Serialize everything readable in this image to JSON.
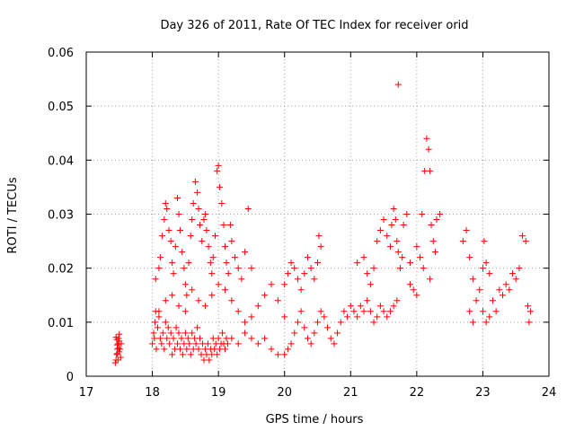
{
  "chart_data": {
    "type": "scatter",
    "title": "Day 326 of 2011, Rate Of TEC Index for receiver orid",
    "xlabel": "GPS time / hours",
    "ylabel": "ROTI / TECUs",
    "xlim": [
      17,
      24
    ],
    "ylim": [
      0,
      0.06
    ],
    "xticks": [
      "17",
      "18",
      "19",
      "20",
      "21",
      "22",
      "23",
      "24"
    ],
    "yticks": [
      "0",
      "0.01",
      "0.02",
      "0.03",
      "0.04",
      "0.05",
      "0.06"
    ],
    "grid": true,
    "marker": "plus",
    "color": "#ff0000",
    "points": [
      [
        17.45,
        0.003
      ],
      [
        17.46,
        0.004
      ],
      [
        17.47,
        0.005
      ],
      [
        17.48,
        0.006
      ],
      [
        17.49,
        0.007
      ],
      [
        17.5,
        0.0065
      ],
      [
        17.45,
        0.0072
      ],
      [
        17.47,
        0.0058
      ],
      [
        17.5,
        0.0045
      ],
      [
        17.52,
        0.0035
      ],
      [
        17.44,
        0.0025
      ],
      [
        17.48,
        0.003
      ],
      [
        17.51,
        0.005
      ],
      [
        17.46,
        0.0068
      ],
      [
        17.5,
        0.0078
      ],
      [
        17.53,
        0.006
      ],
      [
        17.49,
        0.0052
      ],
      [
        17.47,
        0.0042
      ],
      [
        18.0,
        0.006
      ],
      [
        18.02,
        0.008
      ],
      [
        18.04,
        0.01
      ],
      [
        18.05,
        0.012
      ],
      [
        18.03,
        0.007
      ],
      [
        18.06,
        0.005
      ],
      [
        18.08,
        0.009
      ],
      [
        18.1,
        0.011
      ],
      [
        18.12,
        0.007
      ],
      [
        18.14,
        0.006
      ],
      [
        18.16,
        0.008
      ],
      [
        18.18,
        0.005
      ],
      [
        18.2,
        0.01
      ],
      [
        18.22,
        0.007
      ],
      [
        18.24,
        0.009
      ],
      [
        18.26,
        0.006
      ],
      [
        18.28,
        0.008
      ],
      [
        18.3,
        0.004
      ],
      [
        18.32,
        0.007
      ],
      [
        18.34,
        0.005
      ],
      [
        18.36,
        0.009
      ],
      [
        18.38,
        0.006
      ],
      [
        18.4,
        0.008
      ],
      [
        18.42,
        0.005
      ],
      [
        18.44,
        0.007
      ],
      [
        18.46,
        0.004
      ],
      [
        18.48,
        0.006
      ],
      [
        18.5,
        0.008
      ],
      [
        18.52,
        0.005
      ],
      [
        18.54,
        0.007
      ],
      [
        18.56,
        0.006
      ],
      [
        18.58,
        0.004
      ],
      [
        18.6,
        0.008
      ],
      [
        18.62,
        0.005
      ],
      [
        18.64,
        0.007
      ],
      [
        18.66,
        0.006
      ],
      [
        18.68,
        0.009
      ],
      [
        18.7,
        0.005
      ],
      [
        18.72,
        0.007
      ],
      [
        18.74,
        0.004
      ],
      [
        18.76,
        0.006
      ],
      [
        18.78,
        0.003
      ],
      [
        18.8,
        0.005
      ],
      [
        18.82,
        0.004
      ],
      [
        18.84,
        0.006
      ],
      [
        18.86,
        0.003
      ],
      [
        18.88,
        0.005
      ],
      [
        18.9,
        0.004
      ],
      [
        18.92,
        0.007
      ],
      [
        18.94,
        0.005
      ],
      [
        18.96,
        0.006
      ],
      [
        18.98,
        0.004
      ],
      [
        19.0,
        0.007
      ],
      [
        19.02,
        0.005
      ],
      [
        19.04,
        0.006
      ],
      [
        19.06,
        0.008
      ],
      [
        19.08,
        0.006
      ],
      [
        19.1,
        0.005
      ],
      [
        19.12,
        0.007
      ],
      [
        19.14,
        0.006
      ],
      [
        18.05,
        0.018
      ],
      [
        18.1,
        0.02
      ],
      [
        18.12,
        0.022
      ],
      [
        18.15,
        0.026
      ],
      [
        18.18,
        0.029
      ],
      [
        18.2,
        0.032
      ],
      [
        18.22,
        0.031
      ],
      [
        18.25,
        0.027
      ],
      [
        18.28,
        0.025
      ],
      [
        18.3,
        0.021
      ],
      [
        18.32,
        0.019
      ],
      [
        18.35,
        0.024
      ],
      [
        18.38,
        0.033
      ],
      [
        18.4,
        0.03
      ],
      [
        18.42,
        0.027
      ],
      [
        18.45,
        0.023
      ],
      [
        18.48,
        0.02
      ],
      [
        18.5,
        0.017
      ],
      [
        18.52,
        0.015
      ],
      [
        18.55,
        0.021
      ],
      [
        18.58,
        0.026
      ],
      [
        18.6,
        0.029
      ],
      [
        18.62,
        0.032
      ],
      [
        18.65,
        0.036
      ],
      [
        18.68,
        0.034
      ],
      [
        18.7,
        0.031
      ],
      [
        18.72,
        0.028
      ],
      [
        18.75,
        0.025
      ],
      [
        18.78,
        0.029
      ],
      [
        18.8,
        0.03
      ],
      [
        18.82,
        0.027
      ],
      [
        18.85,
        0.024
      ],
      [
        18.88,
        0.021
      ],
      [
        18.9,
        0.019
      ],
      [
        18.92,
        0.022
      ],
      [
        18.95,
        0.026
      ],
      [
        18.98,
        0.038
      ],
      [
        19.0,
        0.039
      ],
      [
        19.02,
        0.035
      ],
      [
        19.05,
        0.032
      ],
      [
        19.08,
        0.028
      ],
      [
        19.1,
        0.024
      ],
      [
        19.12,
        0.021
      ],
      [
        19.15,
        0.019
      ],
      [
        19.18,
        0.028
      ],
      [
        19.2,
        0.025
      ],
      [
        19.25,
        0.022
      ],
      [
        19.3,
        0.02
      ],
      [
        19.35,
        0.018
      ],
      [
        19.4,
        0.023
      ],
      [
        19.45,
        0.031
      ],
      [
        19.5,
        0.02
      ],
      [
        18.1,
        0.012
      ],
      [
        18.2,
        0.014
      ],
      [
        18.3,
        0.015
      ],
      [
        18.4,
        0.013
      ],
      [
        18.5,
        0.012
      ],
      [
        18.6,
        0.016
      ],
      [
        18.7,
        0.014
      ],
      [
        18.8,
        0.013
      ],
      [
        18.9,
        0.015
      ],
      [
        19.0,
        0.017
      ],
      [
        19.1,
        0.016
      ],
      [
        19.2,
        0.014
      ],
      [
        19.3,
        0.012
      ],
      [
        19.4,
        0.01
      ],
      [
        19.5,
        0.011
      ],
      [
        19.6,
        0.013
      ],
      [
        19.7,
        0.015
      ],
      [
        19.8,
        0.017
      ],
      [
        19.9,
        0.014
      ],
      [
        20.0,
        0.011
      ],
      [
        19.2,
        0.007
      ],
      [
        19.3,
        0.006
      ],
      [
        19.4,
        0.008
      ],
      [
        19.5,
        0.007
      ],
      [
        19.6,
        0.006
      ],
      [
        19.7,
        0.007
      ],
      [
        19.8,
        0.005
      ],
      [
        19.9,
        0.004
      ],
      [
        20.0,
        0.004
      ],
      [
        20.05,
        0.005
      ],
      [
        20.1,
        0.006
      ],
      [
        20.15,
        0.008
      ],
      [
        20.2,
        0.01
      ],
      [
        20.25,
        0.012
      ],
      [
        20.3,
        0.009
      ],
      [
        20.35,
        0.007
      ],
      [
        20.4,
        0.006
      ],
      [
        20.45,
        0.008
      ],
      [
        20.5,
        0.01
      ],
      [
        20.55,
        0.012
      ],
      [
        20.6,
        0.011
      ],
      [
        20.65,
        0.009
      ],
      [
        20.7,
        0.007
      ],
      [
        20.75,
        0.006
      ],
      [
        20.8,
        0.008
      ],
      [
        20.85,
        0.01
      ],
      [
        20.9,
        0.012
      ],
      [
        20.95,
        0.011
      ],
      [
        21.0,
        0.013
      ],
      [
        21.05,
        0.012
      ],
      [
        21.1,
        0.011
      ],
      [
        21.15,
        0.013
      ],
      [
        21.2,
        0.012
      ],
      [
        21.25,
        0.014
      ],
      [
        21.3,
        0.012
      ],
      [
        21.35,
        0.01
      ],
      [
        21.4,
        0.011
      ],
      [
        21.45,
        0.013
      ],
      [
        21.5,
        0.012
      ],
      [
        21.55,
        0.011
      ],
      [
        21.6,
        0.012
      ],
      [
        21.65,
        0.013
      ],
      [
        21.7,
        0.014
      ],
      [
        20.0,
        0.017
      ],
      [
        20.05,
        0.019
      ],
      [
        20.1,
        0.021
      ],
      [
        20.15,
        0.02
      ],
      [
        20.2,
        0.018
      ],
      [
        20.25,
        0.016
      ],
      [
        20.3,
        0.019
      ],
      [
        20.35,
        0.022
      ],
      [
        20.4,
        0.02
      ],
      [
        20.45,
        0.018
      ],
      [
        20.5,
        0.021
      ],
      [
        20.52,
        0.026
      ],
      [
        20.55,
        0.024
      ],
      [
        21.1,
        0.021
      ],
      [
        21.2,
        0.022
      ],
      [
        21.25,
        0.019
      ],
      [
        21.3,
        0.017
      ],
      [
        21.35,
        0.02
      ],
      [
        21.4,
        0.025
      ],
      [
        21.45,
        0.027
      ],
      [
        21.5,
        0.029
      ],
      [
        21.55,
        0.026
      ],
      [
        21.6,
        0.024
      ],
      [
        21.62,
        0.028
      ],
      [
        21.65,
        0.031
      ],
      [
        21.68,
        0.029
      ],
      [
        21.7,
        0.025
      ],
      [
        21.72,
        0.023
      ],
      [
        21.75,
        0.02
      ],
      [
        21.78,
        0.022
      ],
      [
        21.8,
        0.028
      ],
      [
        21.85,
        0.03
      ],
      [
        21.72,
        0.054
      ],
      [
        21.9,
        0.021
      ],
      [
        22.0,
        0.024
      ],
      [
        22.05,
        0.022
      ],
      [
        22.08,
        0.03
      ],
      [
        22.12,
        0.038
      ],
      [
        22.15,
        0.044
      ],
      [
        22.18,
        0.042
      ],
      [
        22.2,
        0.038
      ],
      [
        22.22,
        0.028
      ],
      [
        22.25,
        0.025
      ],
      [
        22.28,
        0.023
      ],
      [
        22.3,
        0.029
      ],
      [
        22.35,
        0.03
      ],
      [
        21.9,
        0.017
      ],
      [
        21.95,
        0.016
      ],
      [
        22.0,
        0.015
      ],
      [
        22.1,
        0.02
      ],
      [
        22.2,
        0.018
      ],
      [
        22.7,
        0.025
      ],
      [
        22.75,
        0.027
      ],
      [
        22.8,
        0.022
      ],
      [
        22.85,
        0.018
      ],
      [
        22.8,
        0.012
      ],
      [
        22.85,
        0.01
      ],
      [
        22.9,
        0.014
      ],
      [
        22.95,
        0.016
      ],
      [
        23.0,
        0.02
      ],
      [
        23.02,
        0.025
      ],
      [
        23.05,
        0.021
      ],
      [
        23.1,
        0.019
      ],
      [
        23.0,
        0.012
      ],
      [
        23.05,
        0.01
      ],
      [
        23.1,
        0.011
      ],
      [
        23.15,
        0.014
      ],
      [
        23.2,
        0.012
      ],
      [
        23.25,
        0.016
      ],
      [
        23.3,
        0.015
      ],
      [
        23.35,
        0.017
      ],
      [
        23.4,
        0.016
      ],
      [
        23.45,
        0.019
      ],
      [
        23.5,
        0.018
      ],
      [
        23.55,
        0.02
      ],
      [
        23.6,
        0.026
      ],
      [
        23.65,
        0.025
      ],
      [
        23.68,
        0.013
      ],
      [
        23.7,
        0.01
      ],
      [
        23.72,
        0.012
      ]
    ]
  }
}
